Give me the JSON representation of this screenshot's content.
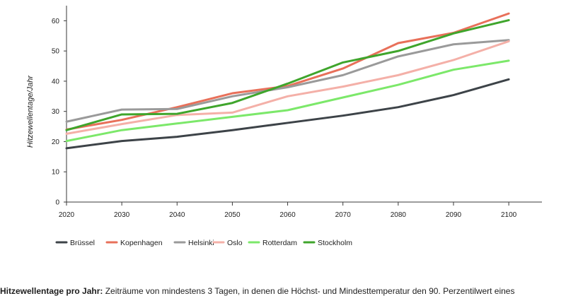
{
  "chart_data": {
    "type": "line",
    "title": "",
    "xlabel": "",
    "ylabel": "Hitzewellentage/Jahr",
    "x": [
      2020,
      2030,
      2040,
      2050,
      2060,
      2070,
      2080,
      2090,
      2100
    ],
    "x_ticks": [
      "2020",
      "2030",
      "2040",
      "2050",
      "2060",
      "2070",
      "2080",
      "2090",
      "2100"
    ],
    "y_ticks": [
      "0",
      "10",
      "20",
      "30",
      "40",
      "50",
      "60"
    ],
    "ylim": [
      0,
      65
    ],
    "xlim": [
      2020,
      2106
    ],
    "grid": false,
    "legend_position": "bottom-left",
    "series": [
      {
        "name": "Brüssel",
        "color": "#3d4348",
        "values": [
          17.8,
          20.2,
          21.6,
          23.8,
          26.2,
          28.6,
          31.4,
          35.4,
          40.6
        ]
      },
      {
        "name": "Kopenhagen",
        "color": "#e8705a",
        "values": [
          24.0,
          27.2,
          31.4,
          36.0,
          38.4,
          44.2,
          52.6,
          56.0,
          62.4
        ]
      },
      {
        "name": "Helsinki",
        "color": "#9a9a9a",
        "values": [
          26.6,
          30.6,
          30.8,
          35.0,
          38.0,
          42.0,
          48.2,
          52.2,
          53.6
        ]
      },
      {
        "name": "Oslo",
        "color": "#f4b0a8",
        "values": [
          22.6,
          25.8,
          28.8,
          29.6,
          35.0,
          38.2,
          42.0,
          47.0,
          53.2
        ]
      },
      {
        "name": "Rotterdam",
        "color": "#7ce86a",
        "values": [
          20.2,
          23.8,
          26.0,
          28.2,
          30.4,
          34.6,
          38.8,
          43.8,
          46.8
        ]
      },
      {
        "name": "Stockholm",
        "color": "#3fa52c",
        "values": [
          23.8,
          29.0,
          29.2,
          32.8,
          39.2,
          46.2,
          50.0,
          55.8,
          60.2
        ]
      }
    ]
  },
  "caption": {
    "bold": "Hitzewellentage pro Jahr:",
    "text": " Zeiträume von mindestens 3 Tagen, in denen die Höchst- und Mindesttemperatur den 90. Perzentilwert eines"
  }
}
